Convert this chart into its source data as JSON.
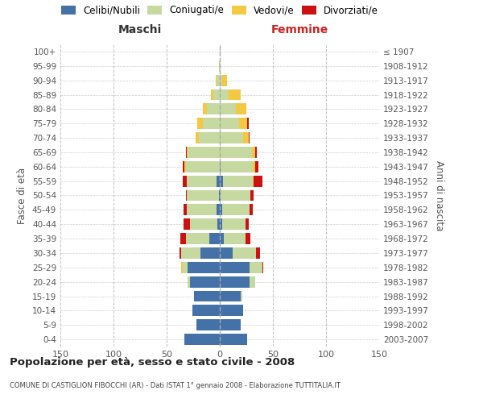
{
  "age_groups": [
    "0-4",
    "5-9",
    "10-14",
    "15-19",
    "20-24",
    "25-29",
    "30-34",
    "35-39",
    "40-44",
    "45-49",
    "50-54",
    "55-59",
    "60-64",
    "65-69",
    "70-74",
    "75-79",
    "80-84",
    "85-89",
    "90-94",
    "95-99",
    "100+"
  ],
  "birth_years": [
    "2003-2007",
    "1998-2002",
    "1993-1997",
    "1988-1992",
    "1983-1987",
    "1978-1982",
    "1973-1977",
    "1968-1972",
    "1963-1967",
    "1958-1962",
    "1953-1957",
    "1948-1952",
    "1943-1947",
    "1938-1942",
    "1933-1937",
    "1928-1932",
    "1923-1927",
    "1918-1922",
    "1913-1917",
    "1908-1912",
    "≤ 1907"
  ],
  "males": {
    "celibi": [
      33,
      22,
      26,
      24,
      28,
      30,
      18,
      10,
      2,
      3,
      1,
      3,
      0,
      0,
      0,
      0,
      0,
      0,
      0,
      0,
      0
    ],
    "coniugati": [
      0,
      0,
      0,
      0,
      2,
      5,
      18,
      22,
      26,
      28,
      30,
      28,
      32,
      30,
      20,
      16,
      12,
      6,
      3,
      1,
      0
    ],
    "vedovi": [
      0,
      0,
      0,
      0,
      0,
      1,
      0,
      0,
      0,
      0,
      0,
      0,
      1,
      1,
      3,
      5,
      4,
      2,
      1,
      0,
      0
    ],
    "divorziati": [
      0,
      0,
      0,
      0,
      0,
      0,
      2,
      5,
      6,
      3,
      1,
      4,
      2,
      1,
      0,
      0,
      0,
      0,
      0,
      0,
      0
    ]
  },
  "females": {
    "nubili": [
      26,
      20,
      22,
      20,
      28,
      28,
      12,
      4,
      2,
      2,
      1,
      3,
      1,
      0,
      0,
      0,
      0,
      0,
      0,
      0,
      0
    ],
    "coniugate": [
      0,
      0,
      0,
      1,
      5,
      12,
      22,
      20,
      22,
      26,
      28,
      28,
      30,
      30,
      22,
      18,
      15,
      8,
      2,
      0,
      0
    ],
    "vedove": [
      0,
      0,
      0,
      0,
      0,
      0,
      0,
      0,
      0,
      0,
      0,
      1,
      2,
      3,
      5,
      8,
      10,
      12,
      5,
      1,
      0
    ],
    "divorziate": [
      0,
      0,
      0,
      0,
      0,
      1,
      4,
      5,
      3,
      3,
      3,
      8,
      3,
      2,
      1,
      1,
      0,
      0,
      0,
      0,
      0
    ]
  },
  "colors": {
    "celibi": "#4472a8",
    "coniugati": "#c5d9a0",
    "vedovi": "#f5c842",
    "divorziati": "#cc1111"
  },
  "xlim": 150,
  "title": "Popolazione per età, sesso e stato civile - 2008",
  "subtitle": "COMUNE DI CASTIGLION FIBOCCHI (AR) - Dati ISTAT 1° gennaio 2008 - Elaborazione TUTTITALIA.IT",
  "ylabel_left": "Fasce di età",
  "ylabel_right": "Anni di nascita",
  "xlabel_left": "Maschi",
  "xlabel_right": "Femmine"
}
